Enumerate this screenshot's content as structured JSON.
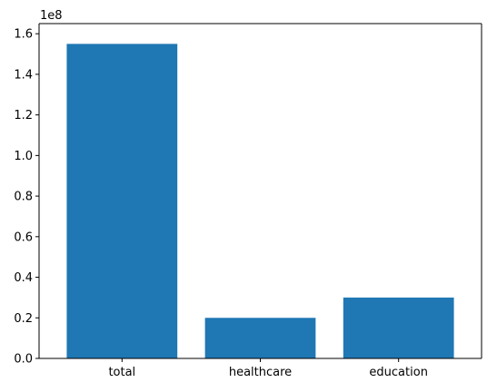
{
  "chart_data": {
    "type": "bar",
    "categories": [
      "total",
      "healthcare",
      "education"
    ],
    "values": [
      155000000,
      20000000,
      30000000
    ],
    "ylim": [
      0,
      165000000
    ],
    "y_ticks": [
      0,
      20000000,
      40000000,
      60000000,
      80000000,
      100000000,
      120000000,
      140000000,
      160000000
    ],
    "y_tick_labels": [
      "0.0",
      "0.2",
      "0.4",
      "0.6",
      "0.8",
      "1.0",
      "1.2",
      "1.4",
      "1.6"
    ],
    "y_offset_label": "1e8",
    "bar_color": "#1f77b4",
    "grid": false,
    "title": "",
    "xlabel": "",
    "ylabel": ""
  }
}
